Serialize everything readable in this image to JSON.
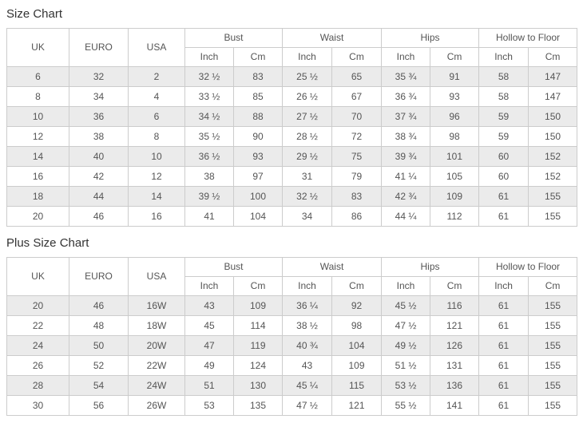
{
  "colors": {
    "stripe": "#ebebeb",
    "border": "#cccccc",
    "cell_text": "#555555",
    "title_text": "#333333",
    "background": "#ffffff"
  },
  "chart_data": [
    {
      "type": "table",
      "title": "Size Chart",
      "group_headers": [
        {
          "label": "UK",
          "cols": 1
        },
        {
          "label": "EURO",
          "cols": 1
        },
        {
          "label": "USA",
          "cols": 1
        },
        {
          "label": "Bust",
          "cols": 2
        },
        {
          "label": "Waist",
          "cols": 2
        },
        {
          "label": "Hips",
          "cols": 2
        },
        {
          "label": "Hollow to Floor",
          "cols": 2
        }
      ],
      "sub_headers": [
        "Inch",
        "Cm",
        "Inch",
        "Cm",
        "Inch",
        "Cm",
        "Inch",
        "Cm"
      ],
      "rows": [
        [
          "6",
          "32",
          "2",
          "32 ½",
          "83",
          "25 ½",
          "65",
          "35 ¾",
          "91",
          "58",
          "147"
        ],
        [
          "8",
          "34",
          "4",
          "33 ½",
          "85",
          "26 ½",
          "67",
          "36 ¾",
          "93",
          "58",
          "147"
        ],
        [
          "10",
          "36",
          "6",
          "34 ½",
          "88",
          "27 ½",
          "70",
          "37 ¾",
          "96",
          "59",
          "150"
        ],
        [
          "12",
          "38",
          "8",
          "35 ½",
          "90",
          "28 ½",
          "72",
          "38 ¾",
          "98",
          "59",
          "150"
        ],
        [
          "14",
          "40",
          "10",
          "36 ½",
          "93",
          "29 ½",
          "75",
          "39 ¾",
          "101",
          "60",
          "152"
        ],
        [
          "16",
          "42",
          "12",
          "38",
          "97",
          "31",
          "79",
          "41 ¼",
          "105",
          "60",
          "152"
        ],
        [
          "18",
          "44",
          "14",
          "39 ½",
          "100",
          "32 ½",
          "83",
          "42 ¾",
          "109",
          "61",
          "155"
        ],
        [
          "20",
          "46",
          "16",
          "41",
          "104",
          "34",
          "86",
          "44 ¼",
          "112",
          "61",
          "155"
        ]
      ]
    },
    {
      "type": "table",
      "title": "Plus Size Chart",
      "group_headers": [
        {
          "label": "UK",
          "cols": 1
        },
        {
          "label": "EURO",
          "cols": 1
        },
        {
          "label": "USA",
          "cols": 1
        },
        {
          "label": "Bust",
          "cols": 2
        },
        {
          "label": "Waist",
          "cols": 2
        },
        {
          "label": "Hips",
          "cols": 2
        },
        {
          "label": "Hollow to Floor",
          "cols": 2
        }
      ],
      "sub_headers": [
        "Inch",
        "Cm",
        "Inch",
        "Cm",
        "Inch",
        "Cm",
        "Inch",
        "Cm"
      ],
      "rows": [
        [
          "20",
          "46",
          "16W",
          "43",
          "109",
          "36 ¼",
          "92",
          "45 ½",
          "116",
          "61",
          "155"
        ],
        [
          "22",
          "48",
          "18W",
          "45",
          "114",
          "38 ½",
          "98",
          "47 ½",
          "121",
          "61",
          "155"
        ],
        [
          "24",
          "50",
          "20W",
          "47",
          "119",
          "40 ¾",
          "104",
          "49 ½",
          "126",
          "61",
          "155"
        ],
        [
          "26",
          "52",
          "22W",
          "49",
          "124",
          "43",
          "109",
          "51 ½",
          "131",
          "61",
          "155"
        ],
        [
          "28",
          "54",
          "24W",
          "51",
          "130",
          "45 ¼",
          "115",
          "53 ½",
          "136",
          "61",
          "155"
        ],
        [
          "30",
          "56",
          "26W",
          "53",
          "135",
          "47 ½",
          "121",
          "55 ½",
          "141",
          "61",
          "155"
        ]
      ]
    }
  ]
}
